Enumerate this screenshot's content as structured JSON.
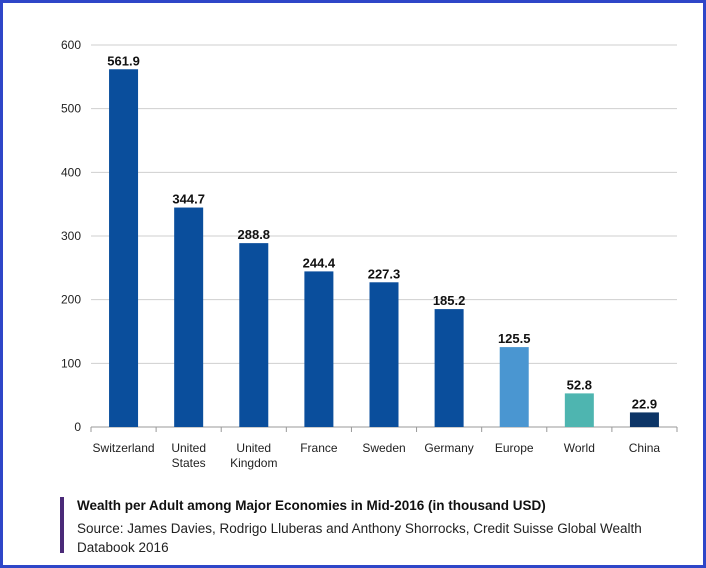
{
  "chart_data": {
    "type": "bar",
    "title": "Wealth per Adult among Major Economies in Mid-2016 (in thousand USD)",
    "source": "Source: James Davies, Rodrigo Lluberas and Anthony Shorrocks, Credit Suisse Global Wealth Databook 2016",
    "categories": [
      [
        "Switzerland"
      ],
      [
        "United",
        "States"
      ],
      [
        "United",
        "Kingdom"
      ],
      [
        "France"
      ],
      [
        "Sweden"
      ],
      [
        "Germany"
      ],
      [
        "Europe"
      ],
      [
        "World"
      ],
      [
        "China"
      ]
    ],
    "values": [
      561.9,
      344.7,
      288.8,
      244.4,
      227.3,
      185.2,
      125.5,
      52.8,
      22.9
    ],
    "value_labels": [
      "561.9",
      "344.7",
      "288.8",
      "244.4",
      "227.3",
      "185.2",
      "125.5",
      "52.8",
      "22.9"
    ],
    "colors": [
      "#0a4e9c",
      "#0a4e9c",
      "#0a4e9c",
      "#0a4e9c",
      "#0a4e9c",
      "#0a4e9c",
      "#4a96d1",
      "#4eb5b0",
      "#0d3566"
    ],
    "ylim": [
      0,
      600
    ],
    "yticks": [
      0,
      100,
      200,
      300,
      400,
      500,
      600
    ],
    "xlabel": "",
    "ylabel": "",
    "grid": true
  }
}
